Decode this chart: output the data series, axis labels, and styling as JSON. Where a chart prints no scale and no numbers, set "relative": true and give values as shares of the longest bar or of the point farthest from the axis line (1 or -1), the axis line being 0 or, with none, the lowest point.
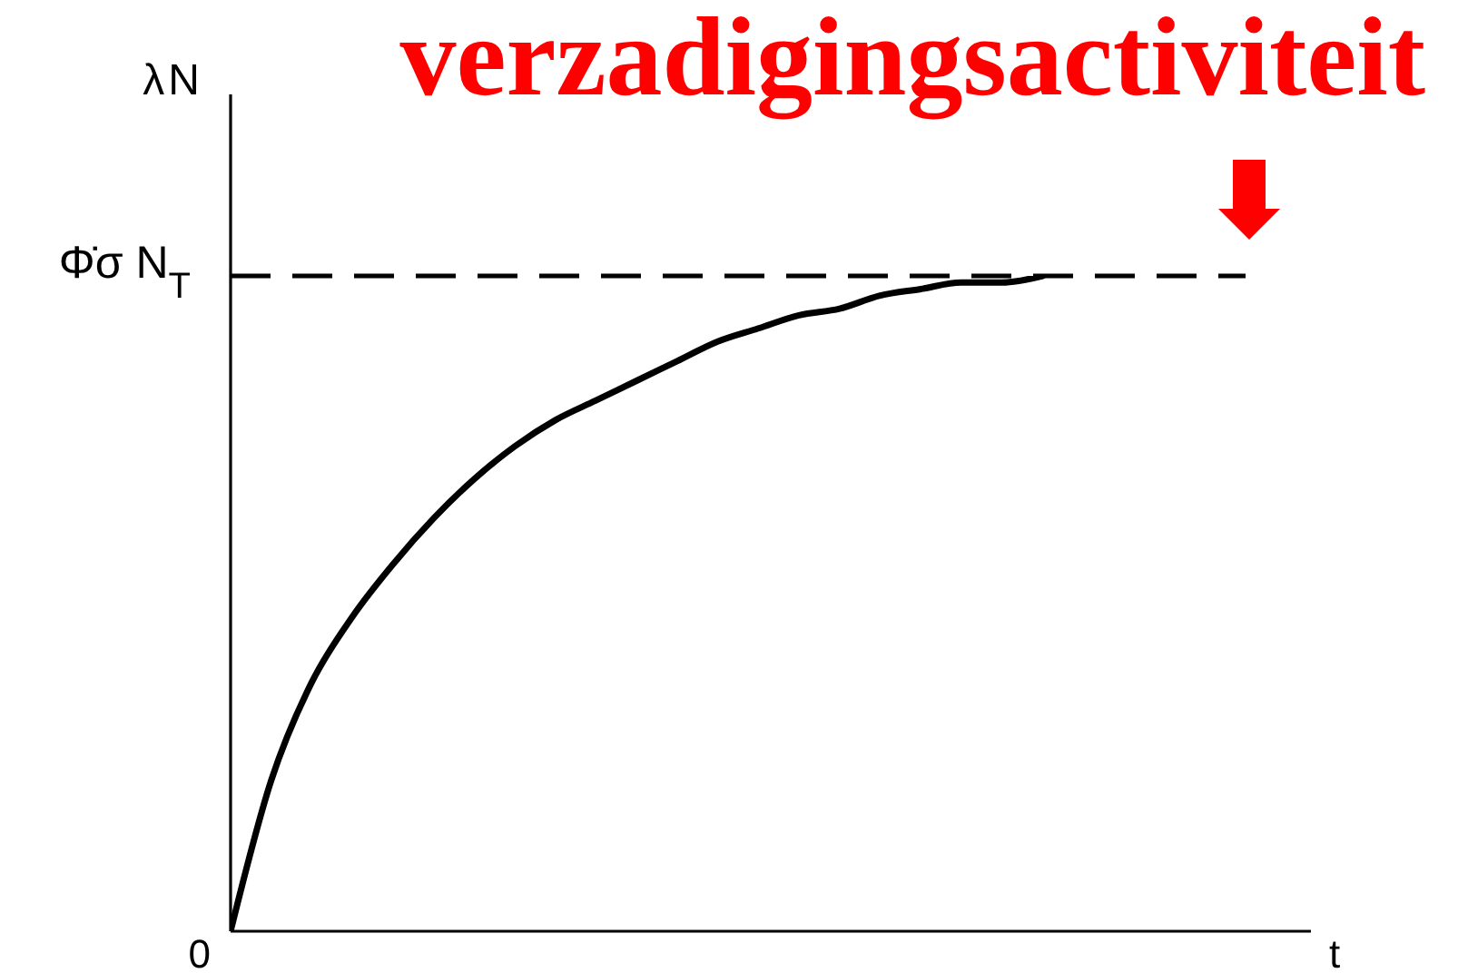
{
  "chart_data": {
    "type": "line",
    "title": "verzadigingsactiviteit",
    "xlabel": "t",
    "ylabel": "λN",
    "annotations": [
      "0"
    ],
    "categories": [
      null,
      null,
      null,
      null,
      null,
      null,
      null,
      null,
      null,
      null,
      null,
      null,
      null,
      null,
      null,
      null,
      null,
      null,
      null,
      null,
      null,
      null,
      null,
      null,
      null,
      null
    ],
    "values": [
      0,
      0.23,
      0.38,
      0.48,
      0.56,
      0.63,
      0.69,
      0.74,
      0.78,
      0.81,
      0.84,
      0.87,
      0.9,
      0.92,
      0.94,
      0.95,
      0.97,
      0.98,
      0.99,
      0.99,
      1,
      null,
      null,
      null,
      null,
      null
    ],
    "color": "#000000",
    "relative": true,
    "marker": "none",
    "line_style": "solid",
    "ref_lines": [
      {
        "axis": "y",
        "value": 1,
        "label": "Φ̇σ N$_{T}$",
        "line_style": "dashed",
        "color": "#000000"
      }
    ]
  }
}
